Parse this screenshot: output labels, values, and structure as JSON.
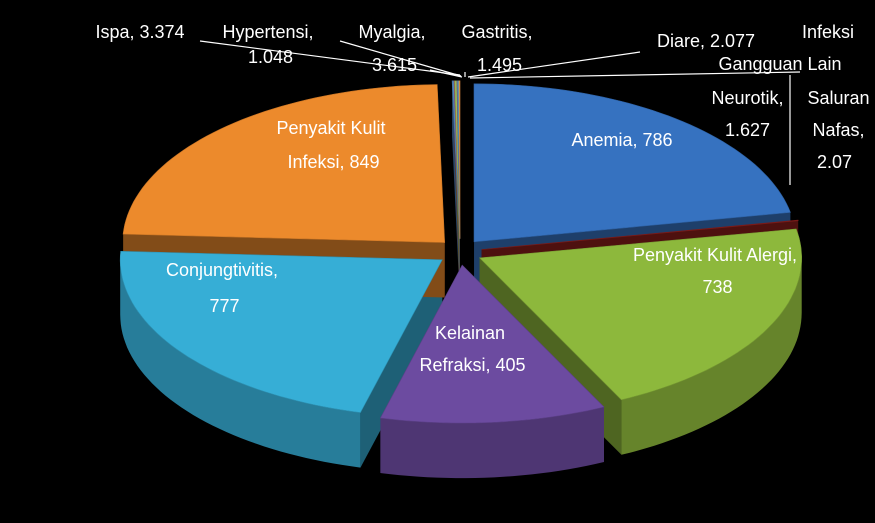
{
  "chart_data": {
    "type": "pie3d",
    "categories": [
      "Anemia",
      "Infeksi Saluran Nafas",
      "Penyakit Kulit Alergi",
      "Kelainan Refraksi",
      "Conjungtivitis",
      "Penyakit Kulit Infeksi",
      "Ispa",
      "Hypertensi",
      "Myalgia",
      "Gastritis",
      "Diare",
      "Gangguan Lain Neurotik"
    ],
    "values": [
      786,
      2.07,
      738,
      405,
      777,
      849,
      3.374,
      1.048,
      3.615,
      1.495,
      2.077,
      1.627
    ],
    "value_labels": [
      "Anemia, 786",
      "Infeksi Saluran Nafas, 2.07",
      "Penyakit Kulit Alergi, 738",
      "Kelainan Refraksi, 405",
      "Conjungtivitis, 777",
      "Penyakit Kulit Infeksi, 849",
      "Ispa, 3.374",
      "Hypertensi, 1.048",
      "Myalgia, 3.615",
      "Gastritis, 1.495",
      "Diare, 2.077",
      "Gangguan Lain Neurotik, 1.627"
    ],
    "colors": [
      "#3672c0",
      "#8e1f1c",
      "#8db83c",
      "#6c4ba0",
      "#36aed6",
      "#ec8a2c",
      "#4f81bd",
      "#c0504d",
      "#9bbb59",
      "#8064a2",
      "#4bacc6",
      "#f79646"
    ]
  }
}
